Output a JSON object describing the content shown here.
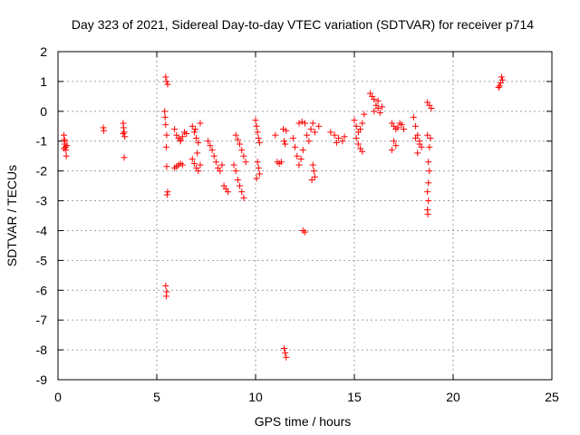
{
  "chart_data": {
    "type": "scatter",
    "title": "Day 323 of 2021, Sidereal Day-to-day VTEC variation (SDTVAR) for receiver p714",
    "xlabel": "GPS time / hours",
    "ylabel": "SDTVAR / TECUs",
    "xlim": [
      0,
      25
    ],
    "ylim": [
      -9,
      2
    ],
    "xticks": [
      0,
      5,
      10,
      15,
      20,
      25
    ],
    "xtick_labels": [
      "0",
      "5",
      "10",
      "15",
      "20",
      "25"
    ],
    "yticks": [
      2,
      1,
      0,
      -1,
      -2,
      -3,
      -4,
      -5,
      -6,
      -7,
      -8,
      -9
    ],
    "ytick_labels": [
      "2",
      "1",
      "0",
      "-1",
      "-2",
      "-3",
      "-4",
      "-5",
      "-6",
      "-7",
      "-8",
      "-9"
    ],
    "grid": true,
    "marker": "+",
    "color": "#ff0000",
    "series": [
      {
        "name": "SDTVAR",
        "points": [
          [
            0.3,
            -0.8
          ],
          [
            0.32,
            -0.95
          ],
          [
            0.35,
            -1.1
          ],
          [
            0.38,
            -1.2
          ],
          [
            0.4,
            -1.3
          ],
          [
            0.42,
            -1.5
          ],
          [
            0.3,
            -1.25
          ],
          [
            0.45,
            -1.15
          ],
          [
            0.35,
            -1.0
          ],
          [
            2.3,
            -0.55
          ],
          [
            2.32,
            -0.65
          ],
          [
            3.3,
            -0.4
          ],
          [
            3.32,
            -0.55
          ],
          [
            3.35,
            -0.7
          ],
          [
            3.38,
            -0.85
          ],
          [
            3.3,
            -0.75
          ],
          [
            3.35,
            -1.55
          ],
          [
            5.4,
            0.0
          ],
          [
            5.42,
            -0.2
          ],
          [
            5.45,
            -0.45
          ],
          [
            5.5,
            -0.8
          ],
          [
            5.48,
            -1.2
          ],
          [
            5.5,
            -1.85
          ],
          [
            5.55,
            -2.7
          ],
          [
            5.52,
            -2.8
          ],
          [
            5.45,
            1.15
          ],
          [
            5.5,
            1.0
          ],
          [
            5.55,
            0.9
          ],
          [
            5.45,
            -5.85
          ],
          [
            5.5,
            -6.05
          ],
          [
            5.48,
            -6.2
          ],
          [
            5.9,
            -0.6
          ],
          [
            6.0,
            -0.8
          ],
          [
            6.1,
            -0.9
          ],
          [
            6.2,
            -1.0
          ],
          [
            6.3,
            -0.85
          ],
          [
            6.4,
            -0.7
          ],
          [
            6.2,
            -0.95
          ],
          [
            6.5,
            -0.75
          ],
          [
            5.9,
            -1.9
          ],
          [
            6.0,
            -1.85
          ],
          [
            6.1,
            -1.8
          ],
          [
            6.2,
            -1.75
          ],
          [
            6.3,
            -1.8
          ],
          [
            6.8,
            -0.5
          ],
          [
            6.9,
            -0.7
          ],
          [
            7.0,
            -0.9
          ],
          [
            7.1,
            -1.05
          ],
          [
            6.95,
            -0.6
          ],
          [
            7.05,
            -1.4
          ],
          [
            7.2,
            -0.4
          ],
          [
            6.8,
            -1.6
          ],
          [
            6.9,
            -1.75
          ],
          [
            7.0,
            -1.9
          ],
          [
            7.1,
            -2.0
          ],
          [
            7.2,
            -1.8
          ],
          [
            7.6,
            -1.0
          ],
          [
            7.7,
            -1.15
          ],
          [
            7.8,
            -1.3
          ],
          [
            7.9,
            -1.5
          ],
          [
            8.0,
            -1.7
          ],
          [
            8.1,
            -1.9
          ],
          [
            8.2,
            -2.0
          ],
          [
            8.3,
            -1.8
          ],
          [
            8.4,
            -2.5
          ],
          [
            8.5,
            -2.6
          ],
          [
            8.6,
            -2.7
          ],
          [
            8.9,
            -1.8
          ],
          [
            9.0,
            -2.0
          ],
          [
            9.1,
            -2.3
          ],
          [
            9.2,
            -2.5
          ],
          [
            9.3,
            -2.7
          ],
          [
            9.4,
            -2.9
          ],
          [
            9.0,
            -0.8
          ],
          [
            9.1,
            -0.95
          ],
          [
            9.2,
            -1.1
          ],
          [
            9.3,
            -1.3
          ],
          [
            9.4,
            -1.5
          ],
          [
            9.5,
            -1.7
          ],
          [
            10.0,
            -0.3
          ],
          [
            10.05,
            -0.5
          ],
          [
            10.1,
            -0.7
          ],
          [
            10.15,
            -0.9
          ],
          [
            10.2,
            -1.05
          ],
          [
            10.1,
            -1.7
          ],
          [
            10.15,
            -1.9
          ],
          [
            10.2,
            -2.1
          ],
          [
            10.05,
            -2.25
          ],
          [
            11.0,
            -0.8
          ],
          [
            11.1,
            -1.7
          ],
          [
            11.2,
            -1.75
          ],
          [
            11.3,
            -1.7
          ],
          [
            11.4,
            -0.6
          ],
          [
            11.45,
            -1.0
          ],
          [
            11.5,
            -1.1
          ],
          [
            11.55,
            -0.65
          ],
          [
            11.45,
            -7.95
          ],
          [
            11.5,
            -8.1
          ],
          [
            11.55,
            -8.25
          ],
          [
            11.9,
            -0.9
          ],
          [
            12.0,
            -1.2
          ],
          [
            12.1,
            -1.5
          ],
          [
            12.2,
            -1.8
          ],
          [
            12.3,
            -1.6
          ],
          [
            12.4,
            -1.3
          ],
          [
            12.2,
            -0.4
          ],
          [
            12.35,
            -0.35
          ],
          [
            12.5,
            -0.4
          ],
          [
            12.4,
            -4.0
          ],
          [
            12.5,
            -4.05
          ],
          [
            12.6,
            -0.8
          ],
          [
            12.7,
            -1.0
          ],
          [
            12.8,
            -0.6
          ],
          [
            12.9,
            -0.4
          ],
          [
            13.0,
            -0.7
          ],
          [
            13.2,
            -0.5
          ],
          [
            12.9,
            -1.8
          ],
          [
            12.95,
            -2.0
          ],
          [
            13.0,
            -2.2
          ],
          [
            12.85,
            -2.3
          ],
          [
            13.8,
            -0.7
          ],
          [
            14.0,
            -0.8
          ],
          [
            14.2,
            -0.9
          ],
          [
            14.4,
            -1.0
          ],
          [
            14.5,
            -0.85
          ],
          [
            14.1,
            -1.05
          ],
          [
            15.0,
            -0.3
          ],
          [
            15.1,
            -0.5
          ],
          [
            15.2,
            -0.7
          ],
          [
            15.3,
            -0.6
          ],
          [
            15.4,
            -0.4
          ],
          [
            15.5,
            -0.1
          ],
          [
            15.2,
            -1.1
          ],
          [
            15.3,
            -1.25
          ],
          [
            15.4,
            -1.35
          ],
          [
            15.1,
            -0.9
          ],
          [
            15.8,
            0.6
          ],
          [
            15.9,
            0.5
          ],
          [
            16.0,
            0.4
          ],
          [
            16.1,
            0.2
          ],
          [
            16.2,
            0.1
          ],
          [
            16.3,
            -0.05
          ],
          [
            16.4,
            0.15
          ],
          [
            16.2,
            0.35
          ],
          [
            16.0,
            0.0
          ],
          [
            16.9,
            -0.4
          ],
          [
            17.0,
            -0.5
          ],
          [
            17.1,
            -0.6
          ],
          [
            17.2,
            -0.55
          ],
          [
            17.3,
            -0.4
          ],
          [
            17.4,
            -0.45
          ],
          [
            17.5,
            -0.6
          ],
          [
            17.0,
            -1.0
          ],
          [
            17.1,
            -1.15
          ],
          [
            16.9,
            -1.3
          ],
          [
            18.0,
            -0.2
          ],
          [
            18.1,
            -0.5
          ],
          [
            18.2,
            -0.8
          ],
          [
            18.3,
            -1.0
          ],
          [
            18.4,
            -1.2
          ],
          [
            18.2,
            -1.4
          ],
          [
            18.3,
            -1.1
          ],
          [
            18.1,
            -0.9
          ],
          [
            18.7,
            0.3
          ],
          [
            18.8,
            0.2
          ],
          [
            18.9,
            0.1
          ],
          [
            18.7,
            -0.8
          ],
          [
            18.8,
            -1.2
          ],
          [
            18.75,
            -1.7
          ],
          [
            18.8,
            -2.0
          ],
          [
            18.75,
            -2.4
          ],
          [
            18.7,
            -2.7
          ],
          [
            18.75,
            -3.0
          ],
          [
            18.7,
            -3.3
          ],
          [
            18.72,
            -3.45
          ],
          [
            18.85,
            -0.9
          ],
          [
            22.3,
            0.8
          ],
          [
            22.4,
            0.95
          ],
          [
            22.5,
            1.05
          ],
          [
            22.45,
            1.15
          ],
          [
            22.35,
            0.85
          ]
        ]
      }
    ]
  }
}
